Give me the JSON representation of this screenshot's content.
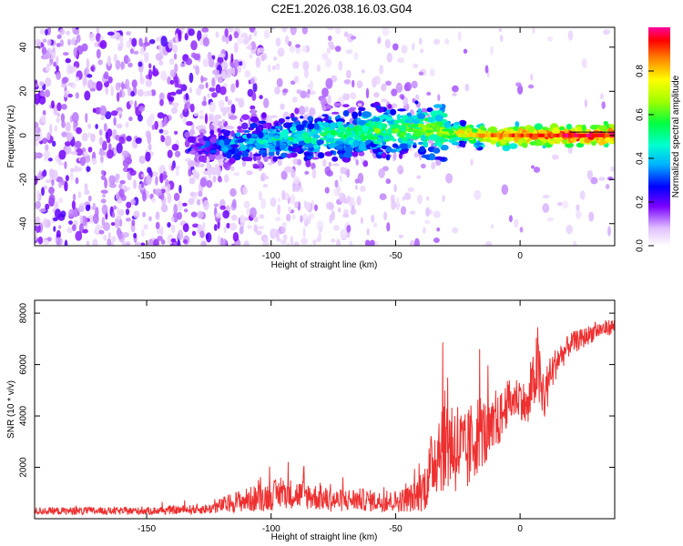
{
  "title": "C2E1.2026.038.16.03.G04",
  "chart_data": [
    {
      "type": "heatmap",
      "xlabel": "Height of straight line (km)",
      "ylabel": "Frequency (Hz)",
      "xlim": [
        -195,
        38
      ],
      "ylim": [
        -50,
        49
      ],
      "xticks": [
        -150,
        -100,
        -50,
        0
      ],
      "yticks": [
        -40,
        -20,
        0,
        20,
        40
      ],
      "colorbar": {
        "label": "Normalized spectral amplitude",
        "range": [
          0,
          1
        ],
        "ticks": [
          0.0,
          0.2,
          0.4,
          0.6,
          0.8
        ]
      },
      "ridge": [
        {
          "x": -130,
          "freq": -6,
          "amp": 0.25
        },
        {
          "x": -120,
          "freq": -4,
          "amp": 0.35
        },
        {
          "x": -100,
          "freq": -2,
          "amp": 0.45
        },
        {
          "x": -80,
          "freq": 0,
          "amp": 0.5
        },
        {
          "x": -60,
          "freq": 2,
          "amp": 0.55
        },
        {
          "x": -40,
          "freq": 3,
          "amp": 0.6
        },
        {
          "x": -25,
          "freq": 1,
          "amp": 0.7
        },
        {
          "x": -10,
          "freq": 0,
          "amp": 0.85
        },
        {
          "x": 0,
          "freq": 0,
          "amp": 0.9
        },
        {
          "x": 10,
          "freq": 0,
          "amp": 0.9
        },
        {
          "x": 20,
          "freq": 0,
          "amp": 0.95
        },
        {
          "x": 38,
          "freq": 0,
          "amp": 0.95
        }
      ]
    },
    {
      "type": "line",
      "xlabel": "Height of straight line (km)",
      "ylabel": "SNR (10 * v/v)",
      "xlim": [
        -195,
        38
      ],
      "ylim": [
        0,
        8500
      ],
      "xticks": [
        -150,
        -100,
        -50,
        0
      ],
      "yticks": [
        2000,
        4000,
        6000,
        8000
      ],
      "color": "#ee3030",
      "series": [
        {
          "x": [
            -195,
            -150,
            -125,
            -115,
            -105,
            -95,
            -85,
            -75,
            -65,
            -55,
            -48,
            -42,
            -38,
            -35,
            -32,
            -28,
            -25,
            -22,
            -19,
            -16,
            -13,
            -10,
            -5,
            0,
            3,
            5,
            7,
            9,
            12,
            15,
            18,
            20,
            25,
            30,
            38
          ],
          "mean": [
            300,
            300,
            380,
            650,
            800,
            1000,
            900,
            700,
            750,
            650,
            700,
            850,
            1300,
            2200,
            3000,
            3000,
            2800,
            2400,
            3000,
            3500,
            3200,
            3500,
            4500,
            4800,
            4200,
            5200,
            6000,
            4500,
            5500,
            6200,
            6500,
            6800,
            7000,
            7300,
            7500
          ],
          "spread": [
            150,
            150,
            200,
            400,
            550,
            600,
            550,
            450,
            450,
            400,
            450,
            600,
            1000,
            1400,
            2000,
            2000,
            1900,
            1700,
            1700,
            1500,
            1300,
            1100,
            900,
            800,
            900,
            1000,
            1600,
            1200,
            800,
            600,
            500,
            450,
            400,
            350,
            300
          ]
        }
      ]
    }
  ]
}
